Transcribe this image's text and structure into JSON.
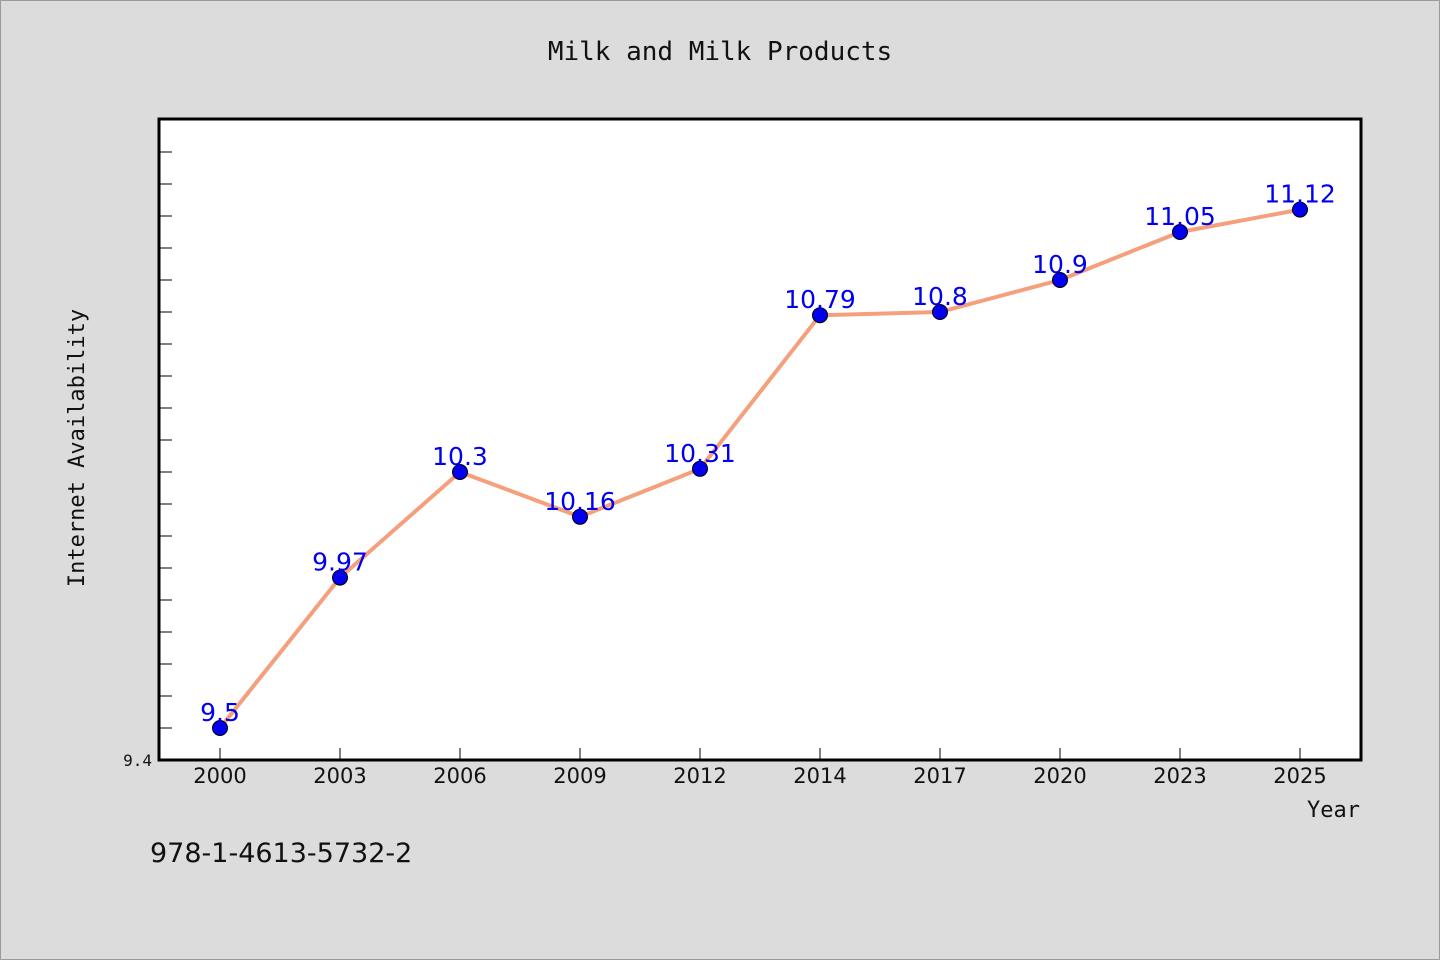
{
  "chart_data": {
    "type": "line",
    "title": "Milk and Milk Products",
    "xlabel": "Year",
    "ylabel": "Internet Availability",
    "categories": [
      "2000",
      "2003",
      "2006",
      "2009",
      "2012",
      "2014",
      "2017",
      "2020",
      "2023",
      "2025"
    ],
    "values": [
      9.5,
      9.97,
      10.3,
      10.16,
      10.31,
      10.79,
      10.8,
      10.9,
      11.05,
      11.12
    ],
    "data_labels": [
      "9.5",
      "9.97",
      "10.3",
      "10.16",
      "10.31",
      "10.79",
      "10.8",
      "10.9",
      "11.05",
      "11.12"
    ],
    "ytick_labels": [
      "9.4"
    ],
    "ylim": [
      9.4,
      11.4
    ],
    "grid": false,
    "legend": "none",
    "line_color": "#f4a07c",
    "marker_color": "#0000ee",
    "label_color": "#0000ee"
  },
  "footer": {
    "code": "978-1-4613-5732-2"
  }
}
